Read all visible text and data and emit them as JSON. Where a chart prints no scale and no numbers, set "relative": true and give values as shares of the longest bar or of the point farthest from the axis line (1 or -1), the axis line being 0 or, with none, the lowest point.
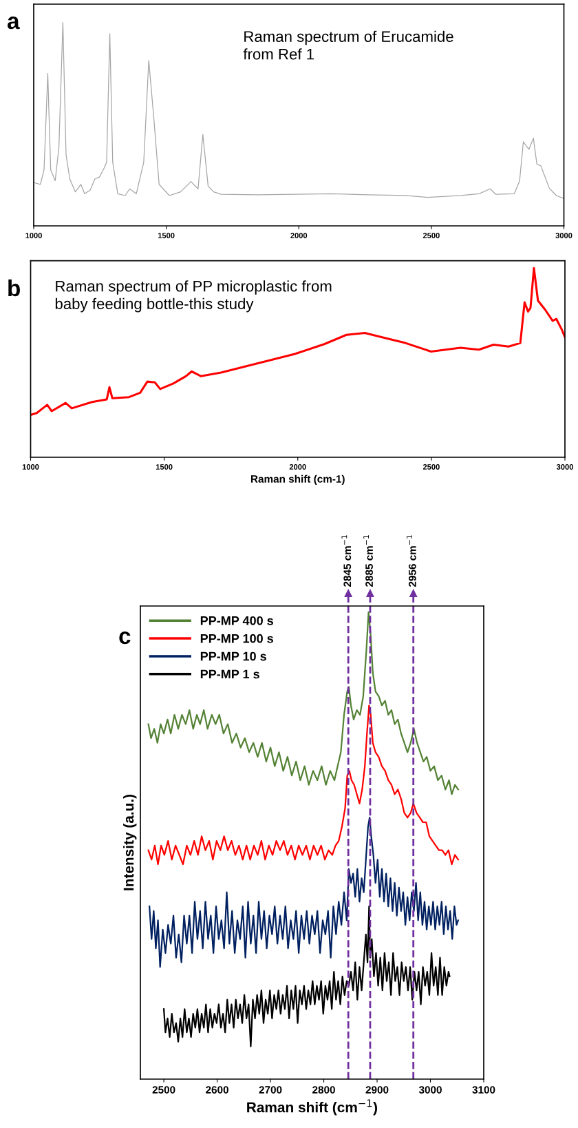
{
  "chart_data": [
    {
      "type": "line",
      "relative": true,
      "title": "Raman spectrum of Erucamide\nfrom Ref 1",
      "annotations": [
        "a"
      ],
      "xlim": [
        1000,
        3000
      ],
      "xticks": [
        1000,
        1500,
        2000,
        2500,
        3000
      ],
      "series": [
        {
          "color": "#a6a6a6",
          "x": [
            1000,
            1025,
            1039,
            1053,
            1064,
            1081,
            1095,
            1110,
            1122,
            1136,
            1157,
            1178,
            1192,
            1213,
            1231,
            1248,
            1266,
            1275,
            1287,
            1298,
            1317,
            1345,
            1362,
            1387,
            1415,
            1434,
            1453,
            1473,
            1512,
            1554,
            1593,
            1620,
            1638,
            1658,
            1679,
            1707,
            1846,
            1985,
            2124,
            2263,
            2402,
            2486,
            2611,
            2680,
            2722,
            2743,
            2813,
            2833,
            2847,
            2868,
            2885,
            2898,
            2913,
            2945,
            2972,
            3000
          ],
          "values": [
            0.213,
            0.204,
            0.276,
            0.749,
            0.276,
            0.222,
            0.385,
            1.0,
            0.349,
            0.231,
            0.167,
            0.204,
            0.158,
            0.176,
            0.231,
            0.24,
            0.285,
            0.313,
            0.945,
            0.313,
            0.158,
            0.149,
            0.182,
            0.158,
            0.313,
            0.813,
            0.531,
            0.204,
            0.149,
            0.167,
            0.218,
            0.182,
            0.449,
            0.195,
            0.167,
            0.155,
            0.153,
            0.155,
            0.158,
            0.153,
            0.149,
            0.14,
            0.149,
            0.158,
            0.182,
            0.155,
            0.158,
            0.222,
            0.413,
            0.376,
            0.431,
            0.304,
            0.295,
            0.185,
            0.149,
            0.135
          ]
        }
      ]
    },
    {
      "type": "line",
      "relative": true,
      "title": "Raman spectrum of PP microplastic from\nbaby feeding bottle-this study",
      "annotations": [
        "b"
      ],
      "xlabel": "Raman shift (cm-1)",
      "xlim": [
        1000,
        3000
      ],
      "xticks": [
        1000,
        1500,
        2000,
        2500,
        3000
      ],
      "series": [
        {
          "color": "#ff0000",
          "x": [
            1000,
            1023,
            1062,
            1079,
            1131,
            1154,
            1230,
            1285,
            1295,
            1306,
            1368,
            1410,
            1437,
            1465,
            1485,
            1534,
            1582,
            1603,
            1637,
            1713,
            1851,
            1989,
            2099,
            2182,
            2251,
            2334,
            2403,
            2499,
            2609,
            2678,
            2733,
            2789,
            2833,
            2849,
            2862,
            2871,
            2884,
            2899,
            2926,
            2954,
            2968,
            2989,
            3000
          ],
          "values": [
            0.224,
            0.234,
            0.277,
            0.244,
            0.287,
            0.259,
            0.292,
            0.306,
            0.37,
            0.312,
            0.318,
            0.341,
            0.4,
            0.396,
            0.361,
            0.39,
            0.429,
            0.454,
            0.429,
            0.448,
            0.497,
            0.546,
            0.598,
            0.647,
            0.657,
            0.628,
            0.604,
            0.559,
            0.579,
            0.569,
            0.595,
            0.585,
            0.604,
            0.819,
            0.77,
            0.789,
            1.0,
            0.828,
            0.78,
            0.721,
            0.731,
            0.673,
            0.634
          ]
        }
      ]
    },
    {
      "type": "line",
      "relative": true,
      "annotations": [
        "c"
      ],
      "xlabel": "Raman shift (cm$^{−1}$)",
      "ylabel": "Intensity (a.u.)",
      "xlim": [
        2456,
        3100
      ],
      "xticks": [
        2500,
        2600,
        2700,
        2800,
        2900,
        3000,
        3100
      ],
      "legend": "top left",
      "ref_lines": [
        {
          "axis": "x",
          "value": 2846,
          "label": "2845 cm$^{−1}$",
          "color": "#7030a0",
          "line_style": "dashed"
        },
        {
          "axis": "x",
          "value": 2887,
          "label": "2885 cm$^{−1}$",
          "color": "#7030a0",
          "line_style": "dashed"
        },
        {
          "axis": "x",
          "value": 2968,
          "label": "2956 cm$^{−1}$",
          "color": "#7030a0",
          "line_style": "dashed"
        }
      ],
      "series": [
        {
          "name": "PP-MP 400 s",
          "color": "#548235",
          "x": [
            2471,
            2476,
            2482,
            2488,
            2494,
            2500,
            2507,
            2513,
            2520,
            2527,
            2534,
            2541,
            2548,
            2555,
            2562,
            2568,
            2575,
            2582,
            2590,
            2597,
            2604,
            2612,
            2620,
            2628,
            2636,
            2644,
            2652,
            2660,
            2668,
            2676,
            2684,
            2692,
            2700,
            2708,
            2716,
            2724,
            2732,
            2740,
            2748,
            2756,
            2764,
            2772,
            2780,
            2788,
            2796,
            2804,
            2812,
            2820,
            2826,
            2832,
            2838,
            2844,
            2847,
            2851,
            2856,
            2862,
            2868,
            2874,
            2880,
            2884,
            2888,
            2892,
            2897,
            2903,
            2909,
            2915,
            2921,
            2927,
            2933,
            2939,
            2945,
            2951,
            2957,
            2963,
            2969,
            2975,
            2981,
            2987,
            2993,
            3000,
            3007,
            3014,
            3021,
            3028,
            3035,
            3040,
            3046,
            3052
          ],
          "values": [
            0.76,
            0.73,
            0.75,
            0.72,
            0.76,
            0.74,
            0.77,
            0.74,
            0.78,
            0.75,
            0.78,
            0.76,
            0.79,
            0.75,
            0.78,
            0.76,
            0.79,
            0.75,
            0.78,
            0.76,
            0.78,
            0.74,
            0.76,
            0.72,
            0.74,
            0.71,
            0.73,
            0.7,
            0.72,
            0.69,
            0.72,
            0.68,
            0.71,
            0.67,
            0.7,
            0.66,
            0.69,
            0.65,
            0.68,
            0.64,
            0.67,
            0.63,
            0.66,
            0.64,
            0.67,
            0.63,
            0.66,
            0.64,
            0.67,
            0.7,
            0.78,
            0.83,
            0.84,
            0.8,
            0.77,
            0.79,
            0.78,
            0.82,
            0.92,
            1.0,
            0.95,
            0.87,
            0.83,
            0.82,
            0.8,
            0.81,
            0.78,
            0.79,
            0.76,
            0.77,
            0.74,
            0.72,
            0.7,
            0.72,
            0.75,
            0.72,
            0.7,
            0.68,
            0.69,
            0.66,
            0.67,
            0.64,
            0.65,
            0.62,
            0.64,
            0.61,
            0.63,
            0.62
          ]
        },
        {
          "name": "PP-MP 100 s",
          "color": "#ff0000",
          "x": [
            2471,
            2477,
            2483,
            2489,
            2495,
            2501,
            2508,
            2515,
            2522,
            2529,
            2536,
            2543,
            2550,
            2557,
            2564,
            2571,
            2578,
            2585,
            2592,
            2599,
            2606,
            2613,
            2620,
            2627,
            2634,
            2641,
            2648,
            2655,
            2662,
            2669,
            2676,
            2683,
            2690,
            2697,
            2704,
            2711,
            2718,
            2725,
            2732,
            2739,
            2746,
            2753,
            2760,
            2767,
            2774,
            2781,
            2788,
            2795,
            2802,
            2809,
            2816,
            2822,
            2828,
            2834,
            2840,
            2844,
            2848,
            2852,
            2857,
            2862,
            2867,
            2872,
            2877,
            2881,
            2885,
            2888,
            2892,
            2897,
            2903,
            2909,
            2915,
            2921,
            2927,
            2933,
            2939,
            2945,
            2951,
            2957,
            2963,
            2968,
            2974,
            2980,
            2986,
            2992,
            2998,
            3004,
            3010,
            3016,
            3022,
            3028,
            3034,
            3040,
            3046,
            3052
          ],
          "values": [
            0.49,
            0.47,
            0.5,
            0.46,
            0.5,
            0.48,
            0.51,
            0.47,
            0.5,
            0.48,
            0.46,
            0.5,
            0.48,
            0.51,
            0.48,
            0.52,
            0.49,
            0.51,
            0.47,
            0.51,
            0.49,
            0.52,
            0.49,
            0.51,
            0.48,
            0.5,
            0.47,
            0.5,
            0.47,
            0.5,
            0.48,
            0.51,
            0.47,
            0.5,
            0.48,
            0.51,
            0.49,
            0.51,
            0.48,
            0.5,
            0.47,
            0.5,
            0.48,
            0.5,
            0.47,
            0.5,
            0.48,
            0.5,
            0.47,
            0.49,
            0.48,
            0.5,
            0.51,
            0.54,
            0.58,
            0.65,
            0.66,
            0.64,
            0.63,
            0.61,
            0.59,
            0.62,
            0.67,
            0.74,
            0.8,
            0.78,
            0.72,
            0.7,
            0.69,
            0.67,
            0.66,
            0.64,
            0.63,
            0.61,
            0.62,
            0.6,
            0.57,
            0.56,
            0.57,
            0.59,
            0.57,
            0.56,
            0.55,
            0.55,
            0.52,
            0.51,
            0.5,
            0.49,
            0.49,
            0.48,
            0.49,
            0.46,
            0.48,
            0.47
          ]
        },
        {
          "name": "PP-MP 10 s",
          "color": "#002060",
          "x": [
            2473,
            2477,
            2481,
            2485,
            2489,
            2493,
            2498,
            2503,
            2508,
            2513,
            2518,
            2523,
            2528,
            2533,
            2538,
            2543,
            2548,
            2553,
            2558,
            2563,
            2568,
            2573,
            2578,
            2583,
            2588,
            2593,
            2598,
            2603,
            2608,
            2613,
            2618,
            2623,
            2628,
            2633,
            2638,
            2643,
            2648,
            2653,
            2658,
            2663,
            2668,
            2673,
            2678,
            2683,
            2688,
            2693,
            2698,
            2703,
            2708,
            2713,
            2718,
            2723,
            2728,
            2733,
            2738,
            2743,
            2748,
            2753,
            2758,
            2763,
            2768,
            2773,
            2778,
            2783,
            2788,
            2793,
            2798,
            2803,
            2808,
            2813,
            2818,
            2823,
            2828,
            2833,
            2838,
            2843,
            2847,
            2851,
            2855,
            2859,
            2863,
            2867,
            2871,
            2875,
            2879,
            2883,
            2886,
            2889,
            2893,
            2897,
            2901,
            2905,
            2909,
            2913,
            2917,
            2921,
            2925,
            2929,
            2933,
            2937,
            2941,
            2945,
            2949,
            2953,
            2957,
            2961,
            2965,
            2969,
            2973,
            2977,
            2981,
            2985,
            2989,
            2993,
            2997,
            3001,
            3005,
            3009,
            3013,
            3017,
            3021,
            3025,
            3029,
            3033,
            3037,
            3041,
            3045,
            3049,
            3052
          ],
          "values": [
            0.37,
            0.3,
            0.36,
            0.28,
            0.34,
            0.24,
            0.32,
            0.27,
            0.33,
            0.29,
            0.35,
            0.26,
            0.31,
            0.25,
            0.35,
            0.29,
            0.35,
            0.27,
            0.38,
            0.3,
            0.36,
            0.28,
            0.38,
            0.3,
            0.35,
            0.27,
            0.37,
            0.3,
            0.34,
            0.28,
            0.4,
            0.29,
            0.36,
            0.27,
            0.34,
            0.3,
            0.37,
            0.26,
            0.38,
            0.29,
            0.35,
            0.27,
            0.38,
            0.3,
            0.36,
            0.28,
            0.35,
            0.31,
            0.37,
            0.29,
            0.35,
            0.3,
            0.37,
            0.28,
            0.34,
            0.3,
            0.36,
            0.27,
            0.35,
            0.3,
            0.36,
            0.29,
            0.35,
            0.31,
            0.36,
            0.27,
            0.34,
            0.31,
            0.36,
            0.26,
            0.37,
            0.31,
            0.38,
            0.33,
            0.4,
            0.34,
            0.45,
            0.42,
            0.44,
            0.39,
            0.45,
            0.38,
            0.43,
            0.4,
            0.47,
            0.54,
            0.56,
            0.52,
            0.48,
            0.42,
            0.47,
            0.39,
            0.45,
            0.38,
            0.44,
            0.37,
            0.43,
            0.36,
            0.42,
            0.35,
            0.41,
            0.36,
            0.4,
            0.33,
            0.39,
            0.34,
            0.4,
            0.36,
            0.42,
            0.34,
            0.4,
            0.33,
            0.38,
            0.32,
            0.37,
            0.33,
            0.38,
            0.32,
            0.37,
            0.33,
            0.38,
            0.31,
            0.37,
            0.32,
            0.36,
            0.3,
            0.37,
            0.33,
            0.34
          ]
        },
        {
          "name": "PP-MP 1 s",
          "color": "#000000",
          "x": [
            2500,
            2503,
            2507,
            2511,
            2515,
            2519,
            2523,
            2527,
            2531,
            2535,
            2539,
            2543,
            2547,
            2551,
            2555,
            2559,
            2563,
            2567,
            2571,
            2575,
            2579,
            2583,
            2587,
            2591,
            2595,
            2599,
            2603,
            2607,
            2611,
            2615,
            2619,
            2623,
            2627,
            2631,
            2635,
            2639,
            2643,
            2647,
            2651,
            2655,
            2659,
            2663,
            2667,
            2671,
            2675,
            2679,
            2683,
            2687,
            2691,
            2695,
            2699,
            2703,
            2707,
            2711,
            2715,
            2719,
            2723,
            2727,
            2731,
            2735,
            2739,
            2743,
            2747,
            2751,
            2755,
            2759,
            2763,
            2767,
            2771,
            2775,
            2779,
            2783,
            2787,
            2791,
            2795,
            2799,
            2803,
            2807,
            2811,
            2815,
            2819,
            2823,
            2827,
            2831,
            2835,
            2839,
            2843,
            2847,
            2851,
            2855,
            2859,
            2863,
            2867,
            2871,
            2875,
            2879,
            2882,
            2885,
            2887,
            2890,
            2894,
            2898,
            2902,
            2906,
            2910,
            2914,
            2918,
            2922,
            2926,
            2930,
            2934,
            2938,
            2942,
            2946,
            2950,
            2954,
            2958,
            2962,
            2966,
            2970,
            2974,
            2978,
            2982,
            2986,
            2990,
            2994,
            2998,
            3002,
            3006,
            3010,
            3014,
            3018,
            3022,
            3026,
            3030,
            3034,
            3036
          ],
          "values": [
            0.15,
            0.1,
            0.13,
            0.09,
            0.14,
            0.1,
            0.12,
            0.08,
            0.13,
            0.09,
            0.15,
            0.1,
            0.13,
            0.09,
            0.14,
            0.11,
            0.15,
            0.1,
            0.14,
            0.11,
            0.16,
            0.1,
            0.15,
            0.11,
            0.14,
            0.12,
            0.16,
            0.11,
            0.14,
            0.1,
            0.17,
            0.12,
            0.16,
            0.11,
            0.17,
            0.13,
            0.16,
            0.12,
            0.18,
            0.13,
            0.16,
            0.07,
            0.17,
            0.13,
            0.18,
            0.14,
            0.19,
            0.12,
            0.17,
            0.14,
            0.19,
            0.13,
            0.18,
            0.15,
            0.19,
            0.14,
            0.18,
            0.15,
            0.2,
            0.13,
            0.19,
            0.15,
            0.2,
            0.12,
            0.19,
            0.16,
            0.2,
            0.15,
            0.19,
            0.16,
            0.21,
            0.16,
            0.2,
            0.17,
            0.21,
            0.14,
            0.2,
            0.17,
            0.21,
            0.15,
            0.23,
            0.17,
            0.21,
            0.16,
            0.22,
            0.18,
            0.21,
            0.2,
            0.23,
            0.19,
            0.25,
            0.17,
            0.24,
            0.19,
            0.25,
            0.31,
            0.25,
            0.37,
            0.26,
            0.3,
            0.22,
            0.27,
            0.2,
            0.26,
            0.19,
            0.27,
            0.21,
            0.25,
            0.18,
            0.27,
            0.21,
            0.24,
            0.18,
            0.25,
            0.21,
            0.24,
            0.19,
            0.24,
            0.17,
            0.23,
            0.19,
            0.23,
            0.16,
            0.24,
            0.2,
            0.23,
            0.18,
            0.27,
            0.2,
            0.24,
            0.18,
            0.26,
            0.18,
            0.24,
            0.2,
            0.23,
            0.22
          ]
        }
      ]
    }
  ]
}
